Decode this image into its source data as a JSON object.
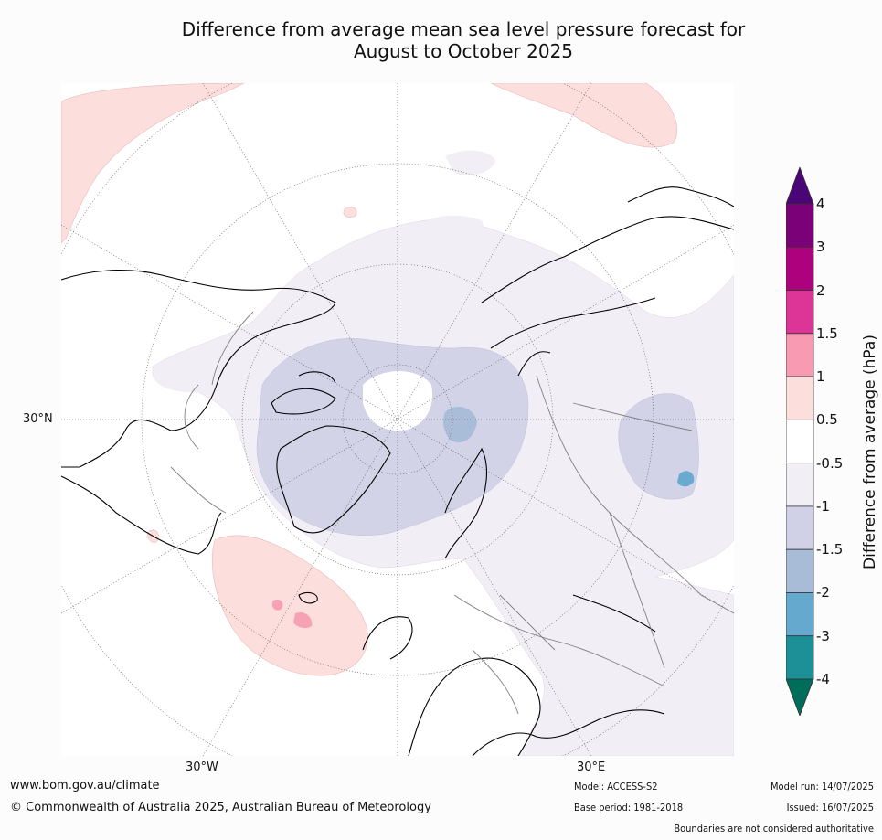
{
  "header": {
    "title_line1": "Difference from average mean sea level pressure forecast for",
    "title_line2": "August to October 2025"
  },
  "map": {
    "projection": "north-polar-stereographic",
    "lat_labels": [
      "30°N"
    ],
    "lon_labels": [
      "30°W",
      "30°E"
    ],
    "colors": {
      "positive_0_5_to_1": "#fcdedd",
      "positive_1_to_1_5": "#f7a1b5",
      "negative_0_5_to_1": "#f2eef6",
      "negative_1_to_1_5": "#d2d3e6",
      "negative_1_5_to_2": "#a9bcd8",
      "negative_2_to_3": "#6aaad0"
    }
  },
  "legend": {
    "title": "Difference from average (hPa)",
    "ticks": [
      "4",
      "3",
      "2",
      "1.5",
      "1",
      "0.5",
      "-0.5",
      "-1",
      "-1.5",
      "-2",
      "-3",
      "-4"
    ],
    "colors": [
      "#4a0677",
      "#7a0178",
      "#ae017e",
      "#dd3498",
      "#f99ab3",
      "#fcdedd",
      "#ffffff",
      "#f2eef6",
      "#d0d1e6",
      "#a8bcd8",
      "#66a9cf",
      "#1d9097",
      "#006d5b"
    ]
  },
  "footer": {
    "website": "www.bom.gov.au/climate",
    "copyright": "© Commonwealth of Australia 2025, Australian Bureau of Meteorology",
    "model": "Model: ACCESS-S2",
    "base_period": "Base period: 1981-2018",
    "model_run": "Model run: 14/07/2025",
    "issued": "Issued: 16/07/2025",
    "boundaries_note": "Boundaries are not considered authoritative"
  }
}
